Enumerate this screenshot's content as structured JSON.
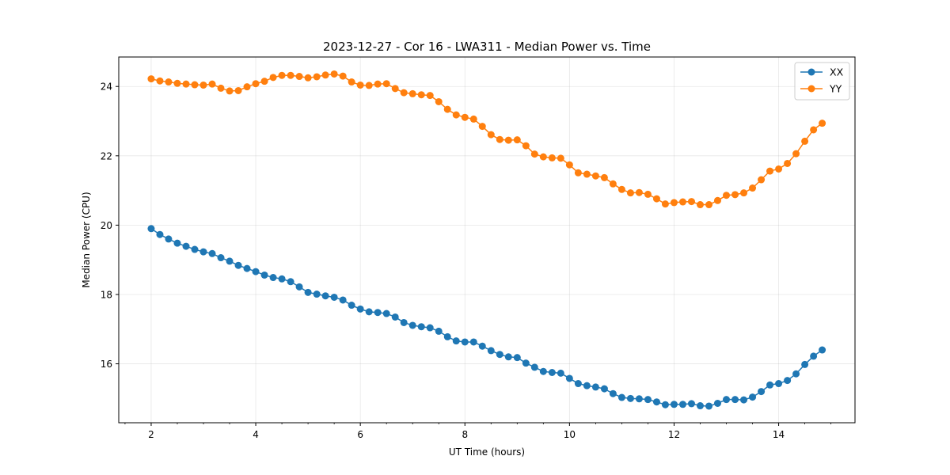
{
  "chart_data": {
    "type": "line",
    "title": "2023-12-27 - Cor 16 - LWA311 - Median Power vs. Time",
    "xlabel": "UT Time (hours)",
    "ylabel": "Median Power (CPU)",
    "xlim": [
      1.38,
      15.46
    ],
    "ylim": [
      14.3,
      24.85
    ],
    "xticks": [
      2,
      4,
      6,
      8,
      10,
      12,
      14
    ],
    "xtick_labels": [
      "2",
      "4",
      "6",
      "8",
      "10",
      "12",
      "14"
    ],
    "yticks": [
      16,
      18,
      20,
      22,
      24
    ],
    "ytick_labels": [
      "16",
      "18",
      "20",
      "22",
      "24"
    ],
    "grid": true,
    "legend_position": "top-right",
    "x": [
      2.0,
      2.167,
      2.333,
      2.5,
      2.667,
      2.833,
      3.0,
      3.167,
      3.333,
      3.5,
      3.667,
      3.833,
      4.0,
      4.167,
      4.333,
      4.5,
      4.667,
      4.833,
      5.0,
      5.167,
      5.333,
      5.5,
      5.667,
      5.833,
      6.0,
      6.167,
      6.333,
      6.5,
      6.667,
      6.833,
      7.0,
      7.167,
      7.333,
      7.5,
      7.667,
      7.833,
      8.0,
      8.167,
      8.333,
      8.5,
      8.667,
      8.833,
      9.0,
      9.167,
      9.333,
      9.5,
      9.667,
      9.833,
      10.0,
      10.167,
      10.333,
      10.5,
      10.667,
      10.833,
      11.0,
      11.167,
      11.333,
      11.5,
      11.667,
      11.833,
      12.0,
      12.167,
      12.333,
      12.5,
      12.667,
      12.833,
      13.0,
      13.167,
      13.333,
      13.5,
      13.667,
      13.833,
      14.0,
      14.167,
      14.333,
      14.5,
      14.667,
      14.833
    ],
    "series": [
      {
        "name": "XX",
        "color": "#1f77b4",
        "values": [
          19.9,
          19.73,
          19.6,
          19.48,
          19.39,
          19.3,
          19.23,
          19.18,
          19.06,
          18.96,
          18.84,
          18.75,
          18.66,
          18.56,
          18.49,
          18.45,
          18.37,
          18.22,
          18.06,
          18.01,
          17.96,
          17.92,
          17.84,
          17.69,
          17.58,
          17.5,
          17.48,
          17.45,
          17.35,
          17.19,
          17.11,
          17.07,
          17.04,
          16.94,
          16.78,
          16.66,
          16.63,
          16.63,
          16.51,
          16.38,
          16.27,
          16.2,
          16.18,
          16.02,
          15.9,
          15.78,
          15.75,
          15.73,
          15.58,
          15.43,
          15.37,
          15.33,
          15.28,
          15.14,
          15.03,
          15.0,
          14.99,
          14.97,
          14.9,
          14.82,
          14.83,
          14.83,
          14.85,
          14.79,
          14.78,
          14.86,
          14.97,
          14.97,
          14.96,
          15.04,
          15.2,
          15.39,
          15.43,
          15.52,
          15.71,
          15.98,
          16.22,
          16.4
        ]
      },
      {
        "name": "YY",
        "color": "#ff7f0e",
        "values": [
          24.22,
          24.16,
          24.13,
          24.09,
          24.07,
          24.05,
          24.04,
          24.07,
          23.95,
          23.87,
          23.88,
          23.99,
          24.08,
          24.15,
          24.26,
          24.32,
          24.32,
          24.29,
          24.25,
          24.28,
          24.33,
          24.36,
          24.3,
          24.13,
          24.04,
          24.03,
          24.07,
          24.08,
          23.94,
          23.82,
          23.79,
          23.76,
          23.74,
          23.56,
          23.34,
          23.18,
          23.11,
          23.06,
          22.85,
          22.61,
          22.47,
          22.45,
          22.46,
          22.29,
          22.05,
          21.97,
          21.94,
          21.93,
          21.74,
          21.51,
          21.47,
          21.42,
          21.37,
          21.19,
          21.03,
          20.93,
          20.94,
          20.89,
          20.76,
          20.61,
          20.65,
          20.67,
          20.68,
          20.59,
          20.59,
          20.71,
          20.86,
          20.88,
          20.93,
          21.07,
          21.31,
          21.56,
          21.62,
          21.78,
          22.06,
          22.42,
          22.75,
          22.94
        ]
      }
    ]
  }
}
